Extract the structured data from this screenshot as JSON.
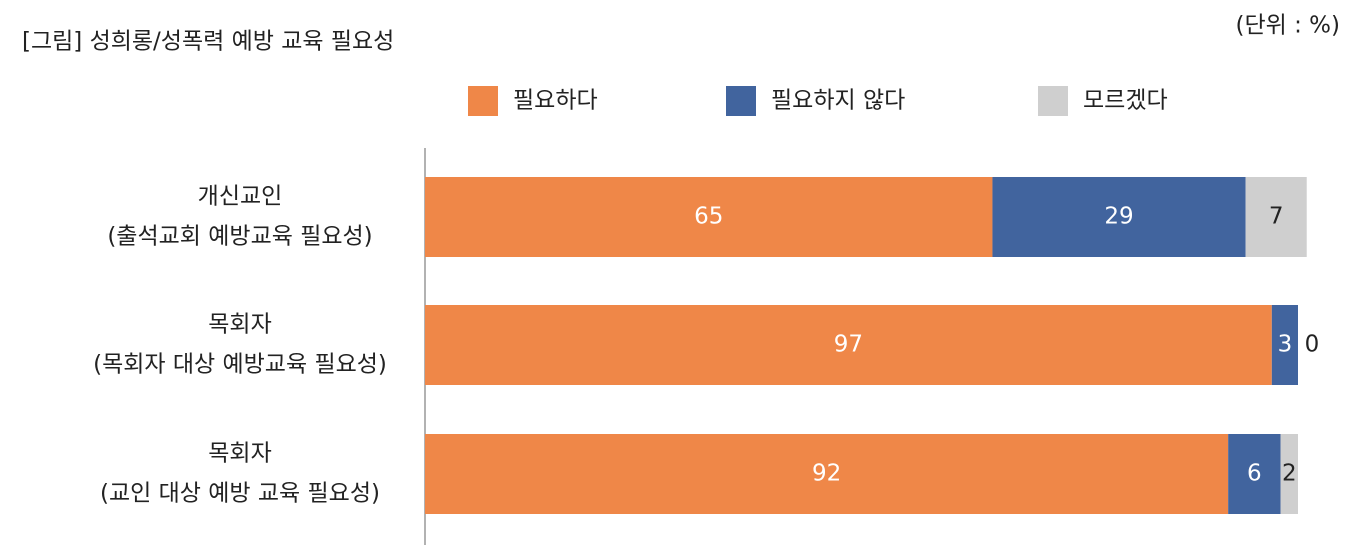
{
  "chart_data": {
    "type": "stacked-bar-horizontal",
    "title": "[그림] 성희롱/성폭력 예방 교육 필요성",
    "unit_note": "(단위 : %)",
    "categories": [
      [
        "개신교인",
        "(출석교회 예방교육 필요성)"
      ],
      [
        "목회자",
        "(목회자 대상 예방교육 필요성)"
      ],
      [
        "목회자",
        "(교인 대상 예방 교육 필요성)"
      ]
    ],
    "series": [
      {
        "name": "필요하다",
        "color": "#ef8748",
        "values": [
          65,
          97,
          92
        ]
      },
      {
        "name": "필요하지 않다",
        "color": "#41649e",
        "values": [
          29,
          3,
          6
        ]
      },
      {
        "name": "모르겠다",
        "color": "#cfcfcf",
        "values": [
          7,
          0,
          2
        ]
      }
    ],
    "xlim": [
      0,
      100
    ]
  }
}
